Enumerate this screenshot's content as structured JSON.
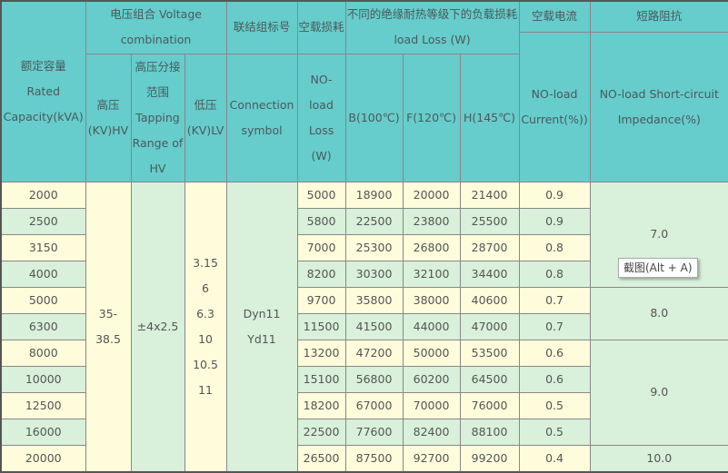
{
  "colors": {
    "header_bg": "#66cccc",
    "row_odd": "#fffcdc",
    "row_even": "#d9f0da",
    "border": "#888888"
  },
  "header": {
    "rated": "额定容量 Rated Capacity(kVA)",
    "voltage": "电压组合 Voltage combination",
    "hv": "高压 (KV)HV",
    "tapping": "高压分接范围 Tapping Range of HV",
    "lv": "低压 (KV)LV",
    "connection_cn": "联结组标号",
    "connection": "Connection symbol",
    "noload_loss_cn": "空载损耗",
    "noload_loss": "NO-load Loss (W)",
    "load_loss": "不同的绝缘耐热等级下的负载损耗load Loss (W)",
    "b": "B(100℃)",
    "f": "F(120℃)",
    "h": "H(145℃)",
    "current_cn": "空载电流",
    "current": "NO-load Current(%))",
    "impedance_cn": "短路阻抗",
    "impedance": "NO-load Short-circuit Impedance(%)"
  },
  "merged": {
    "hv": "35-38.5",
    "tapping": "±4x2.5",
    "lv": [
      "3.15",
      "6",
      "6.3",
      "10",
      "10.5",
      "11"
    ],
    "connection": [
      "Dyn11",
      "Yd11"
    ],
    "impedance": [
      "7.0",
      "8.0",
      "9.0",
      "10.0"
    ]
  },
  "rows": [
    {
      "cap": "2000",
      "nl": "5000",
      "b": "18900",
      "f": "20000",
      "h": "21400",
      "cur": "0.9"
    },
    {
      "cap": "2500",
      "nl": "5800",
      "b": "22500",
      "f": "23800",
      "h": "25500",
      "cur": "0.9"
    },
    {
      "cap": "3150",
      "nl": "7000",
      "b": "25300",
      "f": "26800",
      "h": "28700",
      "cur": "0.8"
    },
    {
      "cap": "4000",
      "nl": "8200",
      "b": "30300",
      "f": "32100",
      "h": "34400",
      "cur": "0.8"
    },
    {
      "cap": "5000",
      "nl": "9700",
      "b": "35800",
      "f": "38000",
      "h": "40600",
      "cur": "0.7"
    },
    {
      "cap": "6300",
      "nl": "11500",
      "b": "41500",
      "f": "44000",
      "h": "47000",
      "cur": "0.7"
    },
    {
      "cap": "8000",
      "nl": "13200",
      "b": "47200",
      "f": "50000",
      "h": "53500",
      "cur": "0.6"
    },
    {
      "cap": "10000",
      "nl": "15100",
      "b": "56800",
      "f": "60200",
      "h": "64500",
      "cur": "0.6"
    },
    {
      "cap": "12500",
      "nl": "18200",
      "b": "67000",
      "f": "70000",
      "h": "76000",
      "cur": "0.5"
    },
    {
      "cap": "16000",
      "nl": "22500",
      "b": "77600",
      "f": "82400",
      "h": "88100",
      "cur": "0.5"
    },
    {
      "cap": "20000",
      "nl": "26500",
      "b": "87500",
      "f": "92700",
      "h": "99200",
      "cur": "0.4"
    }
  ],
  "tooltip": "截图(Alt + A)"
}
